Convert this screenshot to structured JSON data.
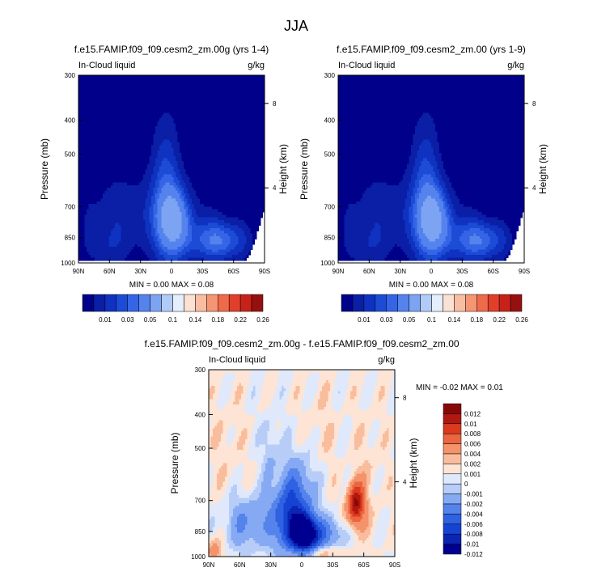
{
  "figure": {
    "title": "JJA"
  },
  "palettes": {
    "abs": [
      "#00008a",
      "#0a1ea6",
      "#0f32c0",
      "#1c4cd6",
      "#3565e6",
      "#5583ee",
      "#7da4f3",
      "#b1cbf8",
      "#e4eefc",
      "#fbe1d3",
      "#f9bea2",
      "#f59574",
      "#ef6a4b",
      "#e23f2a",
      "#c7221a",
      "#971010"
    ],
    "diff": [
      "#000090",
      "#0a24b4",
      "#1544d2",
      "#2f62e2",
      "#5483ec",
      "#86a9f3",
      "#b7cdf8",
      "#dfe9fb",
      "#fde4d4",
      "#f9bc9c",
      "#f4926a",
      "#ec6440",
      "#da3a1e",
      "#b11810",
      "#880808"
    ]
  },
  "chart_data": [
    {
      "type": "heatmap",
      "title": "f.e15.FAMIP.f09_f09.cesm2_zm.00g (yrs 1-4)",
      "left_label": "In-Cloud liquid",
      "right_label": "g/kg",
      "ylabel": "Pressure (mb)",
      "ylabel_right": "Height (km)",
      "xticks": [
        "90N",
        "60N",
        "30N",
        "0",
        "30S",
        "60S",
        "90S"
      ],
      "yticks": [
        "300",
        "400",
        "500",
        "700",
        "850",
        "1000"
      ],
      "yticks_right": [
        "8",
        "4"
      ],
      "stats": "MIN =  0.00  MAX =  0.08",
      "colorbar_labels": [
        "0.01",
        "0.03",
        "0.05",
        "0.1",
        "0.14",
        "0.18",
        "0.22",
        "0.26"
      ],
      "palette": "abs"
    },
    {
      "type": "heatmap",
      "title": "f.e15.FAMIP.f09_f09.cesm2_zm.00 (yrs 1-9)",
      "left_label": "In-Cloud liquid",
      "right_label": "g/kg",
      "ylabel": "Pressure (mb)",
      "ylabel_right": "Height (km)",
      "xticks": [
        "90N",
        "60N",
        "30N",
        "0",
        "30S",
        "60S",
        "90S"
      ],
      "yticks": [
        "300",
        "400",
        "500",
        "700",
        "850",
        "1000"
      ],
      "yticks_right": [
        "8",
        "4"
      ],
      "stats": "MIN =  0.00  MAX =  0.08",
      "colorbar_labels": [
        "0.01",
        "0.03",
        "0.05",
        "0.1",
        "0.14",
        "0.18",
        "0.22",
        "0.26"
      ],
      "palette": "abs"
    },
    {
      "type": "heatmap",
      "title": "f.e15.FAMIP.f09_f09.cesm2_zm.00g - f.e15.FAMIP.f09_f09.cesm2_zm.00",
      "left_label": "In-Cloud liquid",
      "right_label": "g/kg",
      "ylabel": "Pressure (mb)",
      "ylabel_right": "Height (km)",
      "xticks": [
        "90N",
        "60N",
        "30N",
        "0",
        "30S",
        "60S",
        "90S"
      ],
      "yticks": [
        "300",
        "400",
        "500",
        "700",
        "850",
        "1000"
      ],
      "yticks_right": [
        "8",
        "4"
      ],
      "stats": "MIN =  -0.02  MAX =  0.01",
      "colorbar_labels": [
        "0.012",
        "0.01",
        "0.008",
        "0.006",
        "0.004",
        "0.002",
        "0.001",
        "0",
        "-0.001",
        "-0.002",
        "-0.004",
        "-0.006",
        "-0.008",
        "-0.01",
        "-0.012"
      ],
      "palette": "diff"
    }
  ]
}
